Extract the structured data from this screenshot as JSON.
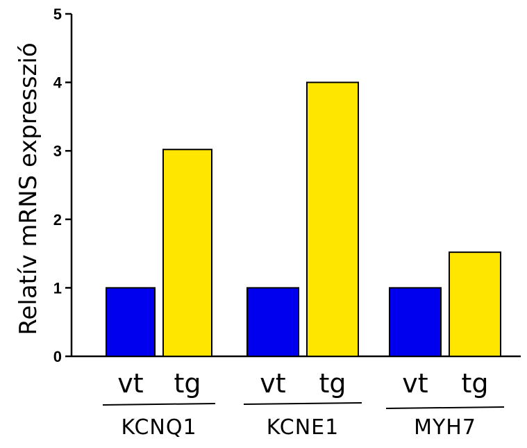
{
  "chart_data": {
    "type": "bar",
    "title": "",
    "xlabel": "",
    "ylabel": "Relatív mRNS expresszió",
    "ylim": [
      0,
      5
    ],
    "yticks": [
      0,
      1,
      2,
      3,
      4,
      5
    ],
    "grid": false,
    "categories": [
      "KCNQ1",
      "KCNE1",
      "MYH7"
    ],
    "bar_labels": [
      "vt",
      "tg"
    ],
    "series": [
      {
        "values": [
          1,
          1,
          1
        ],
        "color": "#0000ee"
      },
      {
        "values": [
          3.02,
          4.0,
          1.52
        ],
        "color": "#ffe600"
      }
    ]
  }
}
